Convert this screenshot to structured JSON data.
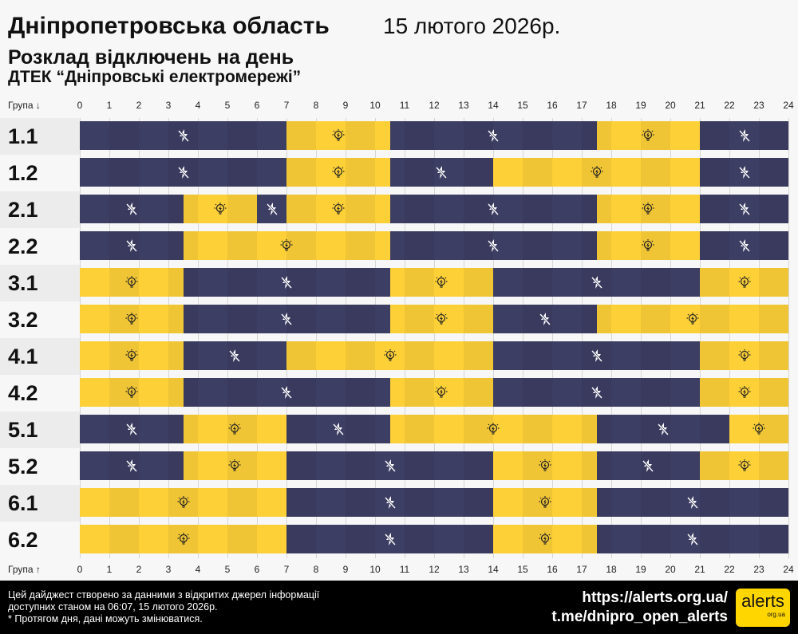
{
  "header": {
    "region": "Дніпропетровська область",
    "date": "15 лютого 2026р.",
    "subtitle": "Розклад відключень на день",
    "company": "ДТЕК “Дніпровські електромережі”"
  },
  "colors": {
    "off": "#3d3e63",
    "on": "#fdd038",
    "label_bg_a": "#ececec",
    "label_bg_b": "#f7f7f7"
  },
  "chart_data": {
    "type": "table",
    "xlabel_top": "Група ↓",
    "xlabel_bottom": "Група ↑",
    "x_ticks": [
      0,
      1,
      2,
      3,
      4,
      5,
      6,
      7,
      8,
      9,
      10,
      11,
      12,
      13,
      14,
      15,
      16,
      17,
      18,
      19,
      20,
      21,
      22,
      23,
      24
    ],
    "xlim": [
      0,
      24
    ],
    "legend": {
      "off": "power-off (crossed lightning icon)",
      "on": "power-on (light bulb icon)"
    },
    "groups": [
      {
        "name": "1.1",
        "segments": [
          [
            "off",
            0,
            7
          ],
          [
            "on",
            7,
            10.5
          ],
          [
            "off",
            10.5,
            17.5
          ],
          [
            "on",
            17.5,
            21
          ],
          [
            "off",
            21,
            24
          ]
        ]
      },
      {
        "name": "1.2",
        "segments": [
          [
            "off",
            0,
            7
          ],
          [
            "on",
            7,
            10.5
          ],
          [
            "off",
            10.5,
            14
          ],
          [
            "on",
            14,
            21
          ],
          [
            "off",
            21,
            24
          ]
        ]
      },
      {
        "name": "2.1",
        "segments": [
          [
            "off",
            0,
            3.5
          ],
          [
            "on",
            3.5,
            6
          ],
          [
            "off",
            6,
            7
          ],
          [
            "on",
            7,
            10.5
          ],
          [
            "off",
            10.5,
            17.5
          ],
          [
            "on",
            17.5,
            21
          ],
          [
            "off",
            21,
            24
          ]
        ]
      },
      {
        "name": "2.2",
        "segments": [
          [
            "off",
            0,
            3.5
          ],
          [
            "on",
            3.5,
            10.5
          ],
          [
            "off",
            10.5,
            17.5
          ],
          [
            "on",
            17.5,
            21
          ],
          [
            "off",
            21,
            24
          ]
        ]
      },
      {
        "name": "3.1",
        "segments": [
          [
            "on",
            0,
            3.5
          ],
          [
            "off",
            3.5,
            10.5
          ],
          [
            "on",
            10.5,
            14
          ],
          [
            "off",
            14,
            21
          ],
          [
            "on",
            21,
            24
          ]
        ]
      },
      {
        "name": "3.2",
        "segments": [
          [
            "on",
            0,
            3.5
          ],
          [
            "off",
            3.5,
            10.5
          ],
          [
            "on",
            10.5,
            14
          ],
          [
            "off",
            14,
            17.5
          ],
          [
            "on",
            17.5,
            24
          ]
        ]
      },
      {
        "name": "4.1",
        "segments": [
          [
            "on",
            0,
            3.5
          ],
          [
            "off",
            3.5,
            7
          ],
          [
            "on",
            7,
            14
          ],
          [
            "off",
            14,
            21
          ],
          [
            "on",
            21,
            24
          ]
        ]
      },
      {
        "name": "4.2",
        "segments": [
          [
            "on",
            0,
            3.5
          ],
          [
            "off",
            3.5,
            10.5
          ],
          [
            "on",
            10.5,
            14
          ],
          [
            "off",
            14,
            21
          ],
          [
            "on",
            21,
            24
          ]
        ]
      },
      {
        "name": "5.1",
        "segments": [
          [
            "off",
            0,
            3.5
          ],
          [
            "on",
            3.5,
            7
          ],
          [
            "off",
            7,
            10.5
          ],
          [
            "on",
            10.5,
            17.5
          ],
          [
            "off",
            17.5,
            22
          ],
          [
            "on",
            22,
            24
          ]
        ]
      },
      {
        "name": "5.2",
        "segments": [
          [
            "off",
            0,
            3.5
          ],
          [
            "on",
            3.5,
            7
          ],
          [
            "off",
            7,
            14
          ],
          [
            "on",
            14,
            17.5
          ],
          [
            "off",
            17.5,
            21
          ],
          [
            "on",
            21,
            24
          ]
        ]
      },
      {
        "name": "6.1",
        "segments": [
          [
            "on",
            0,
            7
          ],
          [
            "off",
            7,
            14
          ],
          [
            "on",
            14,
            17.5
          ],
          [
            "off",
            17.5,
            24
          ]
        ]
      },
      {
        "name": "6.2",
        "segments": [
          [
            "on",
            0,
            7
          ],
          [
            "off",
            7,
            14
          ],
          [
            "on",
            14,
            17.5
          ],
          [
            "off",
            17.5,
            24
          ]
        ]
      }
    ]
  },
  "footer": {
    "note1": "Цей дайджест створено за данними з відкритих джерел інформації",
    "note2": "доступних станом на 06:07, 15 лютого 2026р.",
    "note3": "* Протягом дня, дані можуть змінюватися.",
    "site": "https://alerts.org.ua/",
    "telegram": "t.me/dnipro_open_alerts",
    "logo_text": "alerts",
    "logo_sub": "org.ua"
  }
}
